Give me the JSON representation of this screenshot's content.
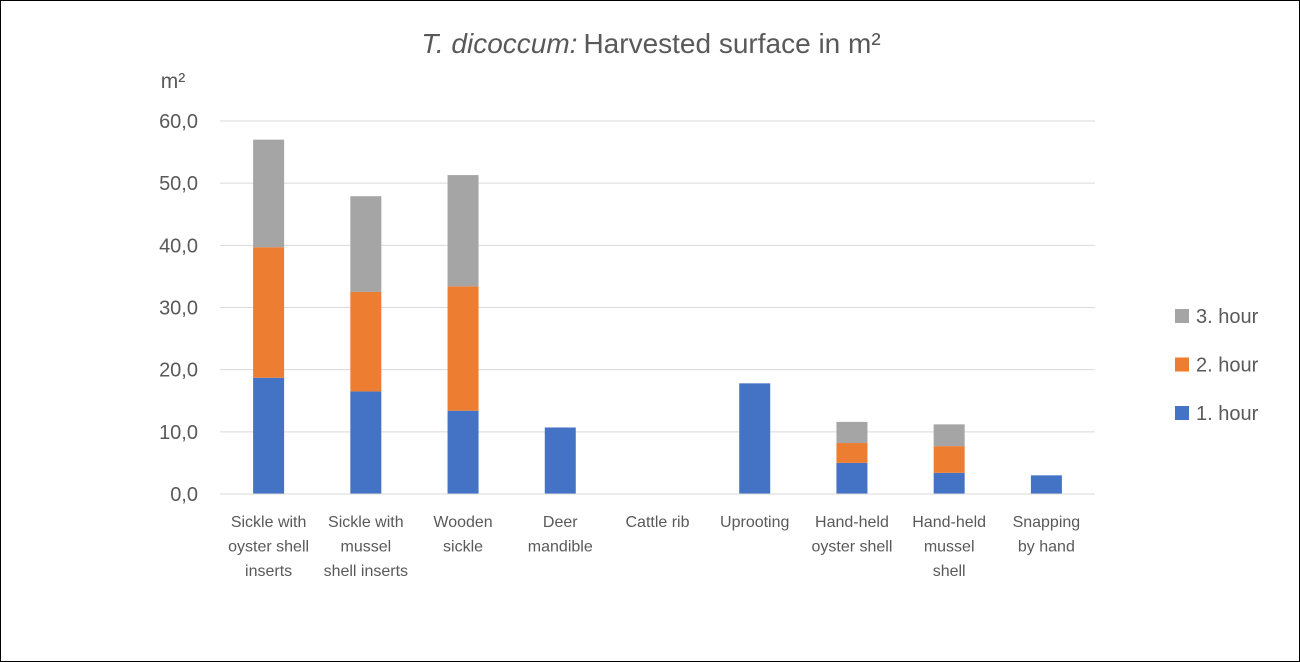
{
  "chart_data": {
    "type": "bar",
    "stacked": true,
    "title_italic": "T. dicoccum:",
    "title_rest": "Harvested surface in m²",
    "ylabel": "m²",
    "xlabel": "",
    "ylim": [
      0,
      60
    ],
    "yticks": [
      "0,0",
      "10,0",
      "20,0",
      "30,0",
      "40,0",
      "50,0",
      "60,0"
    ],
    "grid": true,
    "legend_position": "right",
    "categories": [
      [
        "Sickle with",
        "oyster shell",
        "inserts"
      ],
      [
        "Sickle with",
        "mussel",
        "shell inserts"
      ],
      [
        "Wooden",
        "sickle"
      ],
      [
        "Deer",
        "mandible"
      ],
      [
        "Cattle rib"
      ],
      [
        "Uprooting"
      ],
      [
        "Hand-held",
        "oyster shell"
      ],
      [
        "Hand-held",
        "mussel",
        "shell"
      ],
      [
        "Snapping",
        "by hand"
      ]
    ],
    "series": [
      {
        "name": "1. hour",
        "color": "#4472c4",
        "values": [
          18.7,
          16.5,
          13.4,
          10.7,
          0,
          17.8,
          5.0,
          3.4,
          3.0
        ]
      },
      {
        "name": "2. hour",
        "color": "#ed7d31",
        "values": [
          21.0,
          16.0,
          20.0,
          0,
          0,
          0,
          3.2,
          4.3,
          0
        ]
      },
      {
        "name": "3. hour",
        "color": "#a5a5a5",
        "values": [
          17.3,
          15.4,
          17.9,
          0,
          0,
          0,
          3.4,
          3.5,
          0
        ]
      }
    ],
    "legend_order": [
      2,
      1,
      0
    ]
  }
}
